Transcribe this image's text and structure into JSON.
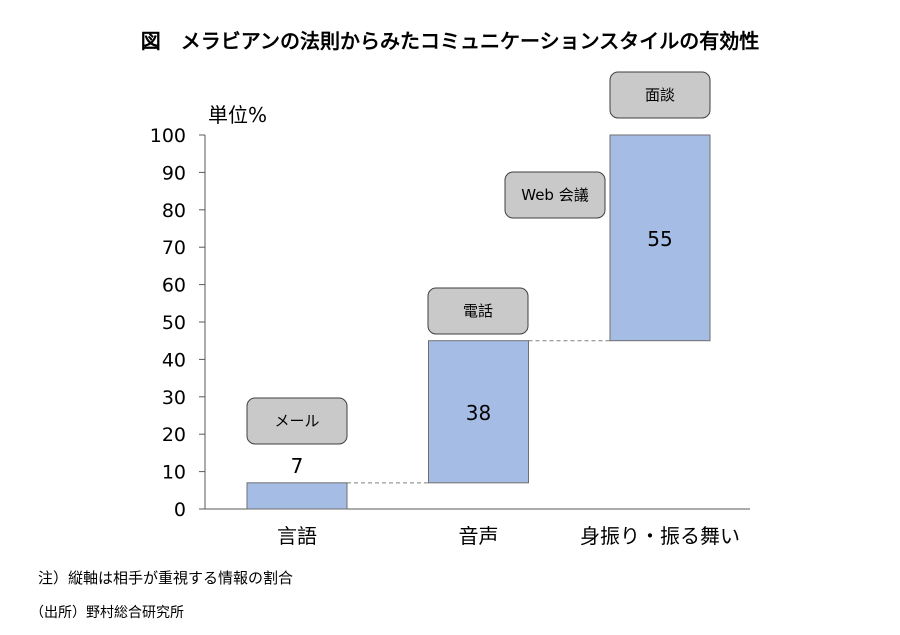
{
  "chart_data": {
    "type": "bar",
    "subtype": "waterfall",
    "title": "図　メラビアンの法則からみたコミュニケーションスタイルの有効性",
    "xlabel": "",
    "ylabel": "単位%",
    "categories": [
      "言語",
      "音声",
      "身振り・振る舞い"
    ],
    "values": [
      7,
      38,
      55
    ],
    "bases": [
      0,
      7,
      45
    ],
    "data_labels": [
      "7",
      "38",
      "55"
    ],
    "ylim": [
      0,
      100
    ],
    "yticks": [
      0,
      10,
      20,
      30,
      40,
      50,
      60,
      70,
      80,
      90,
      100
    ],
    "annotations": [
      "メール",
      "電話",
      "Web 会議",
      "面談"
    ],
    "grid": false
  },
  "notes": {
    "note": "注）縦軸は相手が重視する情報の割合",
    "source": "（出所）野村総合研究所"
  },
  "colors": {
    "bar": "#a5bde4",
    "bar_stroke": "#6f6f6f",
    "label_box": "#c9c9c9",
    "label_box_stroke": "#3f3f3f",
    "axis": "#595959",
    "connector": "#808080"
  }
}
